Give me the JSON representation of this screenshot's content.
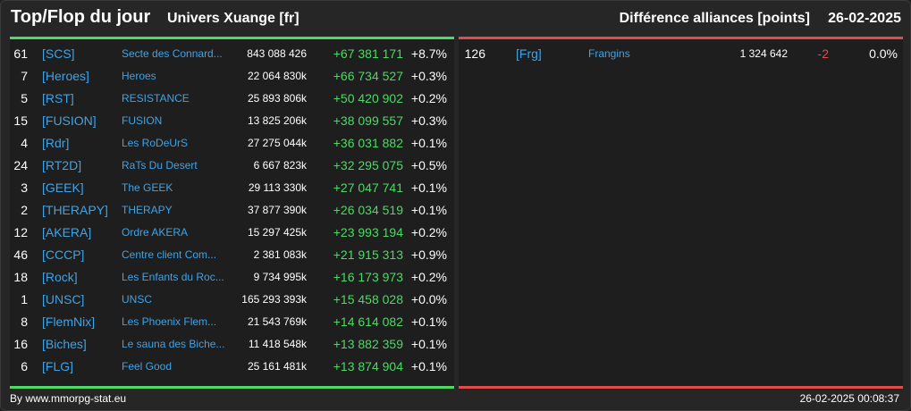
{
  "header": {
    "title": "Top/Flop du jour",
    "universe": "Univers Xuange [fr]",
    "diff_label": "Différence alliances [points]",
    "date": "26-02-2025"
  },
  "colors": {
    "positive": "#4cd964",
    "negative": "#e34b4b",
    "link": "#3fa3e6"
  },
  "top": [
    {
      "rank": "61",
      "tag": "[SCS]",
      "name": "Secte des Connard...",
      "points": "843 088 426",
      "delta": "+67 381 171",
      "pct": "+8.7%"
    },
    {
      "rank": "7",
      "tag": "[Heroes]",
      "name": "Heroes",
      "points": "22 064 830k",
      "delta": "+66 734 527",
      "pct": "+0.3%"
    },
    {
      "rank": "5",
      "tag": "[RST]",
      "name": "RESISTANCE",
      "points": "25 893 806k",
      "delta": "+50 420 902",
      "pct": "+0.2%"
    },
    {
      "rank": "15",
      "tag": "[FUSION]",
      "name": "FUSION",
      "points": "13 825 206k",
      "delta": "+38 099 557",
      "pct": "+0.3%"
    },
    {
      "rank": "4",
      "tag": "[Rdr]",
      "name": "Les RoDeUrS",
      "points": "27 275 044k",
      "delta": "+36 031 882",
      "pct": "+0.1%"
    },
    {
      "rank": "24",
      "tag": "[RT2D]",
      "name": "RaTs Du Desert",
      "points": "6 667 823k",
      "delta": "+32 295 075",
      "pct": "+0.5%"
    },
    {
      "rank": "3",
      "tag": "[GEEK]",
      "name": "The GEEK",
      "points": "29 113 330k",
      "delta": "+27 047 741",
      "pct": "+0.1%"
    },
    {
      "rank": "2",
      "tag": "[THERAPY]",
      "name": "THERAPY",
      "points": "37 877 390k",
      "delta": "+26 034 519",
      "pct": "+0.1%"
    },
    {
      "rank": "12",
      "tag": "[AKERA]",
      "name": "Ordre AKERA",
      "points": "15 297 425k",
      "delta": "+23 993 194",
      "pct": "+0.2%"
    },
    {
      "rank": "46",
      "tag": "[CCCP]",
      "name": "Centre client Com...",
      "points": "2 381 083k",
      "delta": "+21 915 313",
      "pct": "+0.9%"
    },
    {
      "rank": "18",
      "tag": "[Rock]",
      "name": "Les Enfants du Roc...",
      "points": "9 734 995k",
      "delta": "+16 173 973",
      "pct": "+0.2%"
    },
    {
      "rank": "1",
      "tag": "[UNSC]",
      "name": "UNSC",
      "points": "165 293 393k",
      "delta": "+15 458 028",
      "pct": "+0.0%"
    },
    {
      "rank": "8",
      "tag": "[FlemNix]",
      "name": "Les Phoenix Flem...",
      "points": "21 543 769k",
      "delta": "+14 614 082",
      "pct": "+0.1%"
    },
    {
      "rank": "16",
      "tag": "[Biches]",
      "name": "Le sauna des Biche...",
      "points": "11 418 548k",
      "delta": "+13 882 359",
      "pct": "+0.1%"
    },
    {
      "rank": "6",
      "tag": "[FLG]",
      "name": "Feel Good",
      "points": "25 161 481k",
      "delta": "+13 874 904",
      "pct": "+0.1%"
    }
  ],
  "flop": [
    {
      "rank": "126",
      "tag": "[Frg]",
      "name": "Frangins",
      "points": "1 324 642",
      "delta": "-2",
      "pct": "0.0%"
    }
  ],
  "footer": {
    "credit": "By www.mmorpg-stat.eu",
    "timestamp": "26-02-2025 00:08:37"
  }
}
